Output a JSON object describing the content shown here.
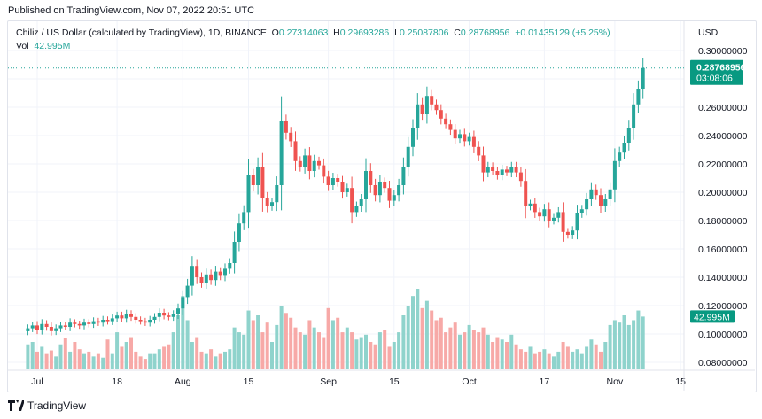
{
  "published": "Published on TradingView.com, Nov 07, 2022 20:51 UTC",
  "legend": {
    "symbol": "Chiliz / US Dollar (calculated by TradingView), 1D, BINANCE",
    "o_label": "O",
    "o": "0.27314063",
    "h_label": "H",
    "h": "0.29693286",
    "l_label": "L",
    "l": "0.25087806",
    "c_label": "C",
    "c": "0.28768956",
    "change": "+0.01435129 (+5.25%)",
    "vol_label": "Vol",
    "vol": "42.995M"
  },
  "currency": "USD",
  "last_price_label": "0.28768956",
  "countdown": "03:08:06",
  "last_volume_label": "42.995M",
  "footer_logo": "TradingView",
  "colors": {
    "up": "#26a69a",
    "down": "#ef5350",
    "up_vol": "#8fd3cc",
    "down_vol": "#f7a9a7",
    "grid": "#f0f3fa"
  },
  "chart_data": {
    "type": "candlestick",
    "ylim": [
      0.07,
      0.31
    ],
    "y_scale": "linear",
    "grid": true,
    "y_ticks": [
      "0.30000000",
      "0.28000000",
      "0.26000000",
      "0.24000000",
      "0.22000000",
      "0.20000000",
      "0.18000000",
      "0.16000000",
      "0.14000000",
      "0.12000000",
      "0.10000000",
      "0.08000000"
    ],
    "x_ticks": [
      {
        "label": "Jul",
        "date": "2022-07-01"
      },
      {
        "label": "18",
        "date": "2022-07-18"
      },
      {
        "label": "Aug",
        "date": "2022-08-01"
      },
      {
        "label": "15",
        "date": "2022-08-15"
      },
      {
        "label": "Sep",
        "date": "2022-09-01"
      },
      {
        "label": "15",
        "date": "2022-09-15"
      },
      {
        "label": "Oct",
        "date": "2022-10-01"
      },
      {
        "label": "17",
        "date": "2022-10-17"
      },
      {
        "label": "Nov",
        "date": "2022-11-01"
      },
      {
        "label": "15",
        "date": "2022-11-15"
      }
    ],
    "dates": [
      "2022-06-29",
      "2022-06-30",
      "2022-07-01",
      "2022-07-02",
      "2022-07-03",
      "2022-07-04",
      "2022-07-05",
      "2022-07-06",
      "2022-07-07",
      "2022-07-08",
      "2022-07-09",
      "2022-07-10",
      "2022-07-11",
      "2022-07-12",
      "2022-07-13",
      "2022-07-14",
      "2022-07-15",
      "2022-07-16",
      "2022-07-17",
      "2022-07-18",
      "2022-07-19",
      "2022-07-20",
      "2022-07-21",
      "2022-07-22",
      "2022-07-23",
      "2022-07-24",
      "2022-07-25",
      "2022-07-26",
      "2022-07-27",
      "2022-07-28",
      "2022-07-29",
      "2022-07-30",
      "2022-07-31",
      "2022-08-01",
      "2022-08-02",
      "2022-08-03",
      "2022-08-04",
      "2022-08-05",
      "2022-08-06",
      "2022-08-07",
      "2022-08-08",
      "2022-08-09",
      "2022-08-10",
      "2022-08-11",
      "2022-08-12",
      "2022-08-13",
      "2022-08-14",
      "2022-08-15",
      "2022-08-16",
      "2022-08-17",
      "2022-08-18",
      "2022-08-19",
      "2022-08-20",
      "2022-08-21",
      "2022-08-22",
      "2022-08-23",
      "2022-08-24",
      "2022-08-25",
      "2022-08-26",
      "2022-08-27",
      "2022-08-28",
      "2022-08-29",
      "2022-08-30",
      "2022-08-31",
      "2022-09-01",
      "2022-09-02",
      "2022-09-03",
      "2022-09-04",
      "2022-09-05",
      "2022-09-06",
      "2022-09-07",
      "2022-09-08",
      "2022-09-09",
      "2022-09-10",
      "2022-09-11",
      "2022-09-12",
      "2022-09-13",
      "2022-09-14",
      "2022-09-15",
      "2022-09-16",
      "2022-09-17",
      "2022-09-18",
      "2022-09-19",
      "2022-09-20",
      "2022-09-21",
      "2022-09-22",
      "2022-09-23",
      "2022-09-24",
      "2022-09-25",
      "2022-09-26",
      "2022-09-27",
      "2022-09-28",
      "2022-09-29",
      "2022-09-30",
      "2022-10-01",
      "2022-10-02",
      "2022-10-03",
      "2022-10-04",
      "2022-10-05",
      "2022-10-06",
      "2022-10-07",
      "2022-10-08",
      "2022-10-09",
      "2022-10-10",
      "2022-10-11",
      "2022-10-12",
      "2022-10-13",
      "2022-10-14",
      "2022-10-15",
      "2022-10-16",
      "2022-10-17",
      "2022-10-18",
      "2022-10-19",
      "2022-10-20",
      "2022-10-21",
      "2022-10-22",
      "2022-10-23",
      "2022-10-24",
      "2022-10-25",
      "2022-10-26",
      "2022-10-27",
      "2022-10-28",
      "2022-10-29",
      "2022-10-30",
      "2022-10-31",
      "2022-11-01",
      "2022-11-02",
      "2022-11-03",
      "2022-11-04",
      "2022-11-05",
      "2022-11-06",
      "2022-11-07"
    ],
    "close": [
      0.104,
      0.106,
      0.103,
      0.107,
      0.105,
      0.102,
      0.104,
      0.106,
      0.105,
      0.108,
      0.107,
      0.106,
      0.108,
      0.107,
      0.109,
      0.108,
      0.11,
      0.109,
      0.111,
      0.113,
      0.111,
      0.114,
      0.112,
      0.11,
      0.109,
      0.108,
      0.11,
      0.112,
      0.115,
      0.113,
      0.112,
      0.114,
      0.118,
      0.126,
      0.134,
      0.148,
      0.14,
      0.136,
      0.142,
      0.138,
      0.144,
      0.141,
      0.146,
      0.15,
      0.165,
      0.178,
      0.186,
      0.212,
      0.205,
      0.218,
      0.196,
      0.19,
      0.193,
      0.205,
      0.25,
      0.242,
      0.236,
      0.222,
      0.218,
      0.226,
      0.215,
      0.222,
      0.219,
      0.211,
      0.205,
      0.21,
      0.207,
      0.2,
      0.203,
      0.186,
      0.19,
      0.195,
      0.215,
      0.205,
      0.198,
      0.207,
      0.203,
      0.194,
      0.198,
      0.205,
      0.218,
      0.232,
      0.245,
      0.262,
      0.255,
      0.268,
      0.262,
      0.258,
      0.252,
      0.248,
      0.244,
      0.238,
      0.241,
      0.236,
      0.239,
      0.232,
      0.226,
      0.214,
      0.218,
      0.215,
      0.212,
      0.216,
      0.214,
      0.218,
      0.214,
      0.208,
      0.19,
      0.192,
      0.186,
      0.183,
      0.188,
      0.18,
      0.182,
      0.186,
      0.172,
      0.17,
      0.173,
      0.185,
      0.188,
      0.195,
      0.202,
      0.198,
      0.19,
      0.195,
      0.202,
      0.222,
      0.228,
      0.235,
      0.245,
      0.262,
      0.273,
      0.28768956
    ],
    "volume_m": [
      20,
      22,
      14,
      18,
      12,
      15,
      10,
      20,
      25,
      14,
      22,
      16,
      12,
      14,
      10,
      12,
      9,
      24,
      12,
      30,
      18,
      22,
      26,
      14,
      10,
      8,
      12,
      12,
      16,
      18,
      20,
      30,
      44,
      60,
      40,
      22,
      26,
      14,
      12,
      16,
      10,
      12,
      14,
      16,
      34,
      30,
      28,
      48,
      40,
      44,
      30,
      38,
      22,
      36,
      52,
      46,
      42,
      34,
      30,
      28,
      40,
      34,
      30,
      26,
      50,
      40,
      42,
      30,
      34,
      30,
      24,
      26,
      28,
      22,
      20,
      30,
      32,
      18,
      22,
      30,
      44,
      52,
      60,
      66,
      50,
      56,
      48,
      40,
      42,
      30,
      34,
      38,
      28,
      30,
      36,
      32,
      30,
      34,
      28,
      22,
      26,
      24,
      22,
      28,
      20,
      16,
      14,
      18,
      12,
      14,
      16,
      12,
      10,
      14,
      22,
      18,
      14,
      16,
      12,
      18,
      24,
      20,
      14,
      22,
      36,
      40,
      38,
      44,
      36,
      40,
      48,
      42.995
    ]
  }
}
